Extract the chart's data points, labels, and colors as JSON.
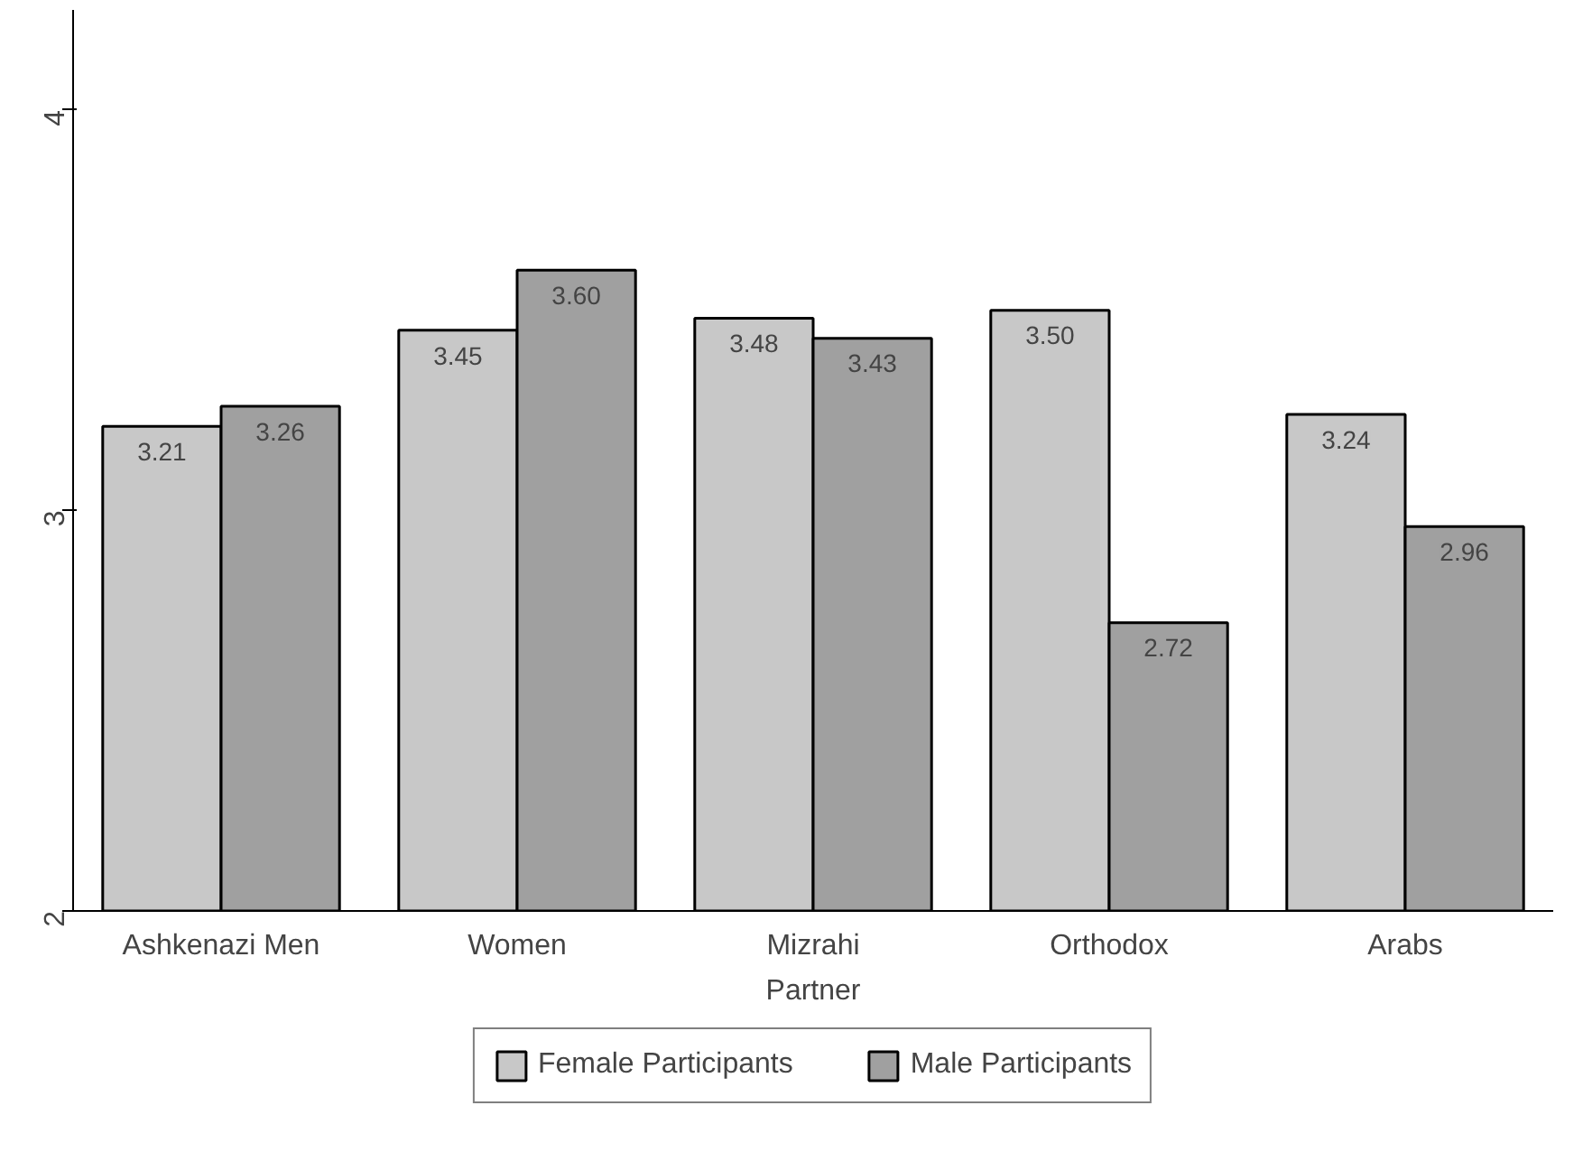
{
  "chart_data": {
    "type": "bar",
    "xlabel": "Partner",
    "categories": [
      "Ashkenazi Men",
      "Women",
      "Mizrahi",
      "Orthodox",
      "Arabs"
    ],
    "series": [
      {
        "name": "Female Participants",
        "color": "#c8c8c8",
        "values": [
          3.21,
          3.45,
          3.48,
          3.5,
          3.24
        ],
        "value_labels": [
          "3.21",
          "3.45",
          "3.48",
          "3.50",
          "3.24"
        ]
      },
      {
        "name": "Male Participants",
        "color": "#a0a0a0",
        "values": [
          3.26,
          3.6,
          3.43,
          2.72,
          2.96
        ],
        "value_labels": [
          "3.26",
          "3.60",
          "3.43",
          "2.72",
          "2.96"
        ]
      }
    ],
    "ylim": [
      2,
      4.25
    ],
    "yticks": [
      2,
      3,
      4
    ],
    "grid": false,
    "legend": "bottom"
  }
}
